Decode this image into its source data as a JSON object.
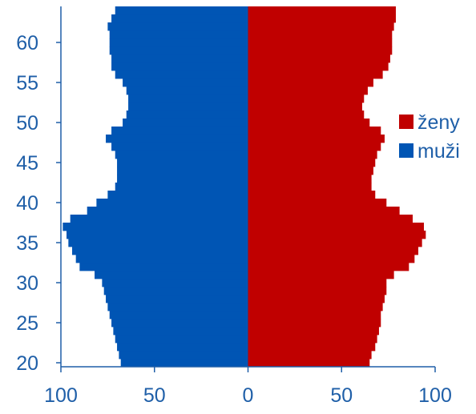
{
  "chart_data": {
    "type": "bar",
    "orientation": "horizontal-population-pyramid",
    "title": "",
    "xlabel": "",
    "ylabel": "",
    "y_range": [
      20,
      64
    ],
    "y_ticks": [
      20,
      25,
      30,
      35,
      40,
      45,
      50,
      55,
      60
    ],
    "x_ticks": [
      {
        "value": -100,
        "label": "100"
      },
      {
        "value": -50,
        "label": "50"
      },
      {
        "value": 0,
        "label": "0"
      },
      {
        "value": 50,
        "label": "50"
      },
      {
        "value": 100,
        "label": "100"
      }
    ],
    "xlim": [
      -100,
      100
    ],
    "grid": false,
    "legend_position": "right",
    "ages": [
      20,
      21,
      22,
      23,
      24,
      25,
      26,
      27,
      28,
      29,
      30,
      31,
      32,
      33,
      34,
      35,
      36,
      37,
      38,
      39,
      40,
      41,
      42,
      43,
      44,
      45,
      46,
      47,
      48,
      49,
      50,
      51,
      52,
      53,
      54,
      55,
      56,
      57,
      58,
      59,
      60,
      61,
      62,
      63,
      64
    ],
    "series": [
      {
        "name": "ženy",
        "color": "#c00000",
        "side": "right",
        "values": [
          65,
          66,
          68,
          69,
          70,
          71,
          71,
          72,
          73,
          74,
          74,
          78,
          86,
          89,
          91,
          93,
          95,
          94,
          88,
          81,
          74,
          68,
          66,
          66,
          67,
          68,
          69,
          71,
          73,
          71,
          65,
          62,
          61,
          62,
          64,
          67,
          72,
          75,
          76,
          77,
          77,
          77,
          78,
          79,
          79
        ]
      },
      {
        "name": "muži",
        "color": "#0055b4",
        "side": "left",
        "values": [
          68,
          69,
          70,
          71,
          72,
          73,
          74,
          75,
          76,
          77,
          78,
          82,
          90,
          92,
          94,
          96,
          97,
          99,
          95,
          86,
          81,
          75,
          71,
          70,
          70,
          70,
          71,
          73,
          76,
          73,
          67,
          65,
          64,
          64,
          65,
          67,
          71,
          73,
          73,
          74,
          74,
          74,
          75,
          73,
          71
        ]
      }
    ]
  }
}
